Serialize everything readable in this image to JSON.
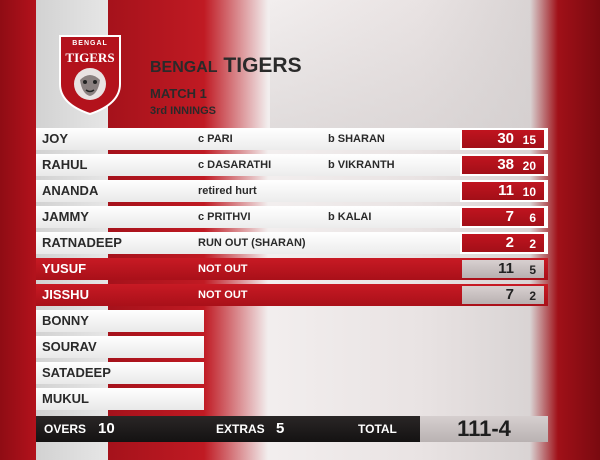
{
  "team": {
    "name_part1": "BENGAL",
    "name_part2": "TIGERS",
    "match": "MATCH 1",
    "innings": "3rd INNINGS"
  },
  "logo": {
    "top_text": "BENGAL",
    "main_text": "TIGERS"
  },
  "colors": {
    "accent": "#b3121c",
    "dark": "#1e1a1a",
    "light": "#ffffff"
  },
  "batsmen": [
    {
      "name": "JOY",
      "how1": "c PARI",
      "how2": "b SHARAN",
      "runs": "30",
      "balls": "15"
    },
    {
      "name": "RAHUL",
      "how1": "c DASARATHI",
      "how2": "b VIKRANTH",
      "runs": "38",
      "balls": "20"
    },
    {
      "name": "ANANDA",
      "how1": "retired hurt",
      "how2": "",
      "runs": "11",
      "balls": "10"
    },
    {
      "name": "JAMMY",
      "how1": "c PRITHVI",
      "how2": "b KALAI",
      "runs": "7",
      "balls": "6"
    },
    {
      "name": "RATNADEEP",
      "how1": "RUN OUT  (SHARAN)",
      "how2": "",
      "runs": "2",
      "balls": "2"
    },
    {
      "name": "YUSUF",
      "how1": "NOT OUT",
      "how2": "",
      "runs": "11",
      "balls": "5"
    },
    {
      "name": "JISSHU",
      "how1": "NOT OUT",
      "how2": "",
      "runs": "7",
      "balls": "2"
    },
    {
      "name": "BONNY"
    },
    {
      "name": "SOURAV"
    },
    {
      "name": "SATADEEP"
    },
    {
      "name": "MUKUL"
    }
  ],
  "footer": {
    "overs_label": "OVERS",
    "overs": "10",
    "extras_label": "EXTRAS",
    "extras": "5",
    "total_label": "TOTAL",
    "total": "111-4"
  }
}
